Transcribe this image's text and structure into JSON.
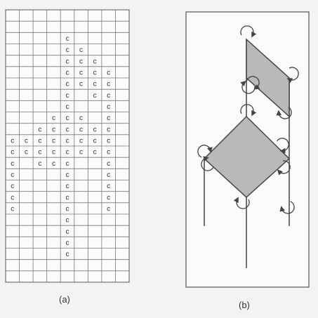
{
  "panel_a": {
    "label": "(a)",
    "cols": 9,
    "rows": 24,
    "cell_mark": "c",
    "cells": [
      [
        2,
        4
      ],
      [
        3,
        4
      ],
      [
        3,
        5
      ],
      [
        4,
        4
      ],
      [
        4,
        5
      ],
      [
        4,
        6
      ],
      [
        5,
        4
      ],
      [
        5,
        5
      ],
      [
        5,
        6
      ],
      [
        5,
        7
      ],
      [
        6,
        4
      ],
      [
        6,
        5
      ],
      [
        6,
        6
      ],
      [
        6,
        7
      ],
      [
        7,
        4
      ],
      [
        7,
        6
      ],
      [
        7,
        7
      ],
      [
        8,
        4
      ],
      [
        8,
        7
      ],
      [
        9,
        3
      ],
      [
        9,
        4
      ],
      [
        9,
        5
      ],
      [
        9,
        7
      ],
      [
        10,
        2
      ],
      [
        10,
        3
      ],
      [
        10,
        4
      ],
      [
        10,
        5
      ],
      [
        10,
        6
      ],
      [
        10,
        7
      ],
      [
        11,
        0
      ],
      [
        11,
        1
      ],
      [
        11,
        2
      ],
      [
        11,
        3
      ],
      [
        11,
        4
      ],
      [
        11,
        5
      ],
      [
        11,
        6
      ],
      [
        11,
        7
      ],
      [
        12,
        0
      ],
      [
        12,
        1
      ],
      [
        12,
        2
      ],
      [
        12,
        3
      ],
      [
        12,
        4
      ],
      [
        12,
        5
      ],
      [
        12,
        6
      ],
      [
        12,
        7
      ],
      [
        13,
        0
      ],
      [
        13,
        2
      ],
      [
        13,
        3
      ],
      [
        13,
        4
      ],
      [
        13,
        7
      ],
      [
        14,
        0
      ],
      [
        14,
        4
      ],
      [
        14,
        7
      ],
      [
        15,
        0
      ],
      [
        15,
        4
      ],
      [
        15,
        7
      ],
      [
        16,
        0
      ],
      [
        16,
        4
      ],
      [
        16,
        7
      ],
      [
        17,
        0
      ],
      [
        17,
        4
      ],
      [
        17,
        7
      ],
      [
        18,
        4
      ],
      [
        19,
        4
      ],
      [
        20,
        4
      ],
      [
        21,
        4
      ]
    ]
  },
  "panel_b": {
    "label": "(b)",
    "fill_color": "#b9b9b9",
    "line_color": "#444444",
    "shapes": [
      "upper-parallelogram",
      "diamond"
    ],
    "rotation_marks": 12
  }
}
